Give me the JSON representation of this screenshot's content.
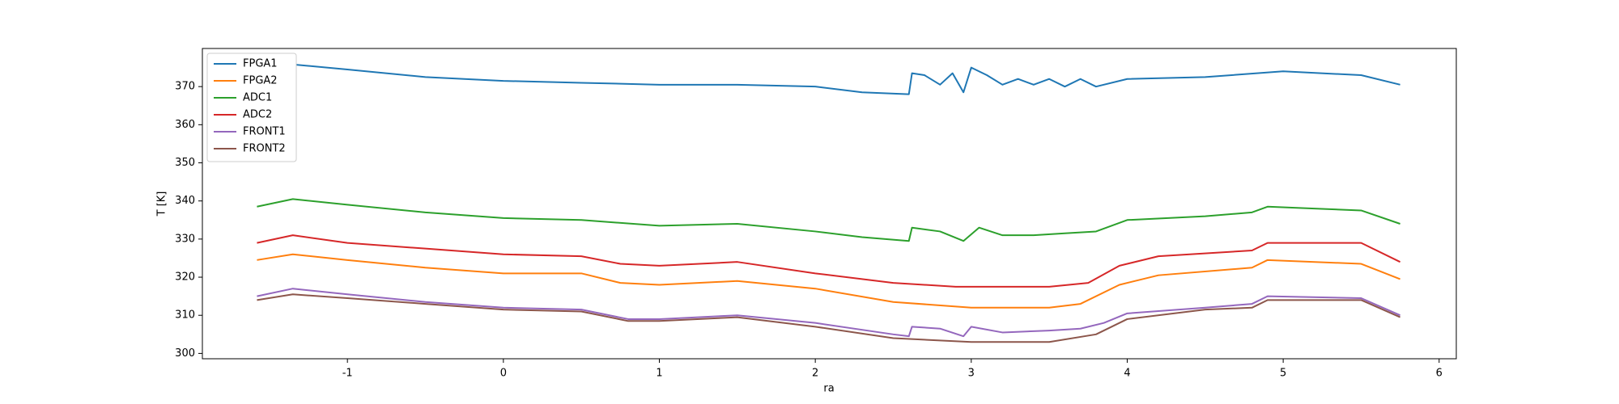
{
  "chart_data": {
    "type": "line",
    "x_label": "ra",
    "y_label": "T [K]",
    "xlim": [
      -1.93,
      6.11
    ],
    "ylim": [
      298.6,
      380
    ],
    "xticks": [
      -1,
      0,
      1,
      2,
      3,
      4,
      5,
      6
    ],
    "yticks": [
      300,
      310,
      320,
      330,
      340,
      350,
      360,
      370
    ],
    "legend": "upper left",
    "series": [
      {
        "name": "FPGA1",
        "color": "#1f77b4",
        "x": [
          -1.58,
          -1.4,
          -1,
          -0.5,
          0,
          0.5,
          1,
          1.5,
          2,
          2.3,
          2.6,
          2.62,
          2.7,
          2.8,
          2.88,
          2.95,
          3.0,
          3.1,
          3.2,
          3.3,
          3.4,
          3.5,
          3.6,
          3.7,
          3.8,
          4,
          4.5,
          5,
          5.5,
          5.75
        ],
        "values": [
          376,
          376,
          374.5,
          372.5,
          371.5,
          371,
          370.5,
          370.5,
          370,
          368.5,
          368,
          373.5,
          373,
          370.5,
          373.5,
          368.5,
          375,
          373,
          370.5,
          372,
          370.5,
          372,
          370,
          372,
          370,
          372,
          372.5,
          374,
          373,
          370.5
        ]
      },
      {
        "name": "FPGA2",
        "color": "#ff7f0e",
        "x": [
          -1.58,
          -1.35,
          -1,
          -0.5,
          0,
          0.5,
          0.75,
          1,
          1.5,
          2,
          2.5,
          3,
          3.5,
          3.7,
          3.95,
          4.2,
          4.8,
          4.9,
          5.5,
          5.75
        ],
        "values": [
          324.5,
          326,
          324.5,
          322.5,
          321,
          321,
          318.5,
          318,
          319,
          317,
          313.5,
          312,
          312,
          313,
          318,
          320.5,
          322.5,
          324.5,
          323.5,
          319.5
        ]
      },
      {
        "name": "ADC1",
        "color": "#2ca02c",
        "x": [
          -1.58,
          -1.35,
          -1,
          -0.5,
          0,
          0.5,
          1,
          1.5,
          2,
          2.3,
          2.6,
          2.62,
          2.8,
          2.95,
          3.05,
          3.2,
          3.4,
          3.6,
          3.8,
          4,
          4.5,
          4.8,
          4.9,
          5.2,
          5.5,
          5.75
        ],
        "values": [
          338.5,
          340.5,
          339,
          337,
          335.5,
          335,
          333.5,
          334,
          332,
          330.5,
          329.5,
          333,
          332,
          329.5,
          333,
          331,
          331,
          331.5,
          332,
          335,
          336,
          337,
          338.5,
          338,
          337.5,
          334
        ]
      },
      {
        "name": "ADC2",
        "color": "#d62728",
        "x": [
          -1.58,
          -1.35,
          -1,
          -0.5,
          0,
          0.5,
          0.75,
          1,
          1.5,
          2,
          2.5,
          2.9,
          3.0,
          3.5,
          3.75,
          3.95,
          4.2,
          4.8,
          4.9,
          5.5,
          5.75
        ],
        "values": [
          329,
          331,
          329,
          327.5,
          326,
          325.5,
          323.5,
          323,
          324,
          321,
          318.5,
          317.5,
          317.5,
          317.5,
          318.5,
          323,
          325.5,
          327,
          329,
          329,
          324
        ]
      },
      {
        "name": "FRONT1",
        "color": "#9467bd",
        "x": [
          -1.58,
          -1.35,
          -1,
          -0.5,
          0,
          0.5,
          0.8,
          1,
          1.5,
          2,
          2.5,
          2.6,
          2.62,
          2.8,
          2.95,
          3.0,
          3.2,
          3.5,
          3.7,
          3.85,
          4.0,
          4.5,
          4.8,
          4.9,
          5.5,
          5.75
        ],
        "values": [
          315,
          317,
          315.5,
          313.5,
          312,
          311.5,
          309,
          309,
          310,
          308,
          305,
          304.5,
          307,
          306.5,
          304.5,
          307,
          305.5,
          306,
          306.5,
          308,
          310.5,
          312,
          313,
          315,
          314.5,
          310
        ]
      },
      {
        "name": "FRONT2",
        "color": "#8c564b",
        "x": [
          -1.58,
          -1.35,
          -1,
          -0.5,
          0,
          0.5,
          0.8,
          1,
          1.5,
          2,
          2.5,
          3,
          3.5,
          3.8,
          4.0,
          4.5,
          4.8,
          4.9,
          5.5,
          5.75
        ],
        "values": [
          314,
          315.5,
          314.5,
          313,
          311.5,
          311,
          308.5,
          308.5,
          309.5,
          307,
          304,
          303,
          303,
          305,
          309,
          311.5,
          312,
          314,
          314,
          309.5
        ]
      }
    ]
  }
}
